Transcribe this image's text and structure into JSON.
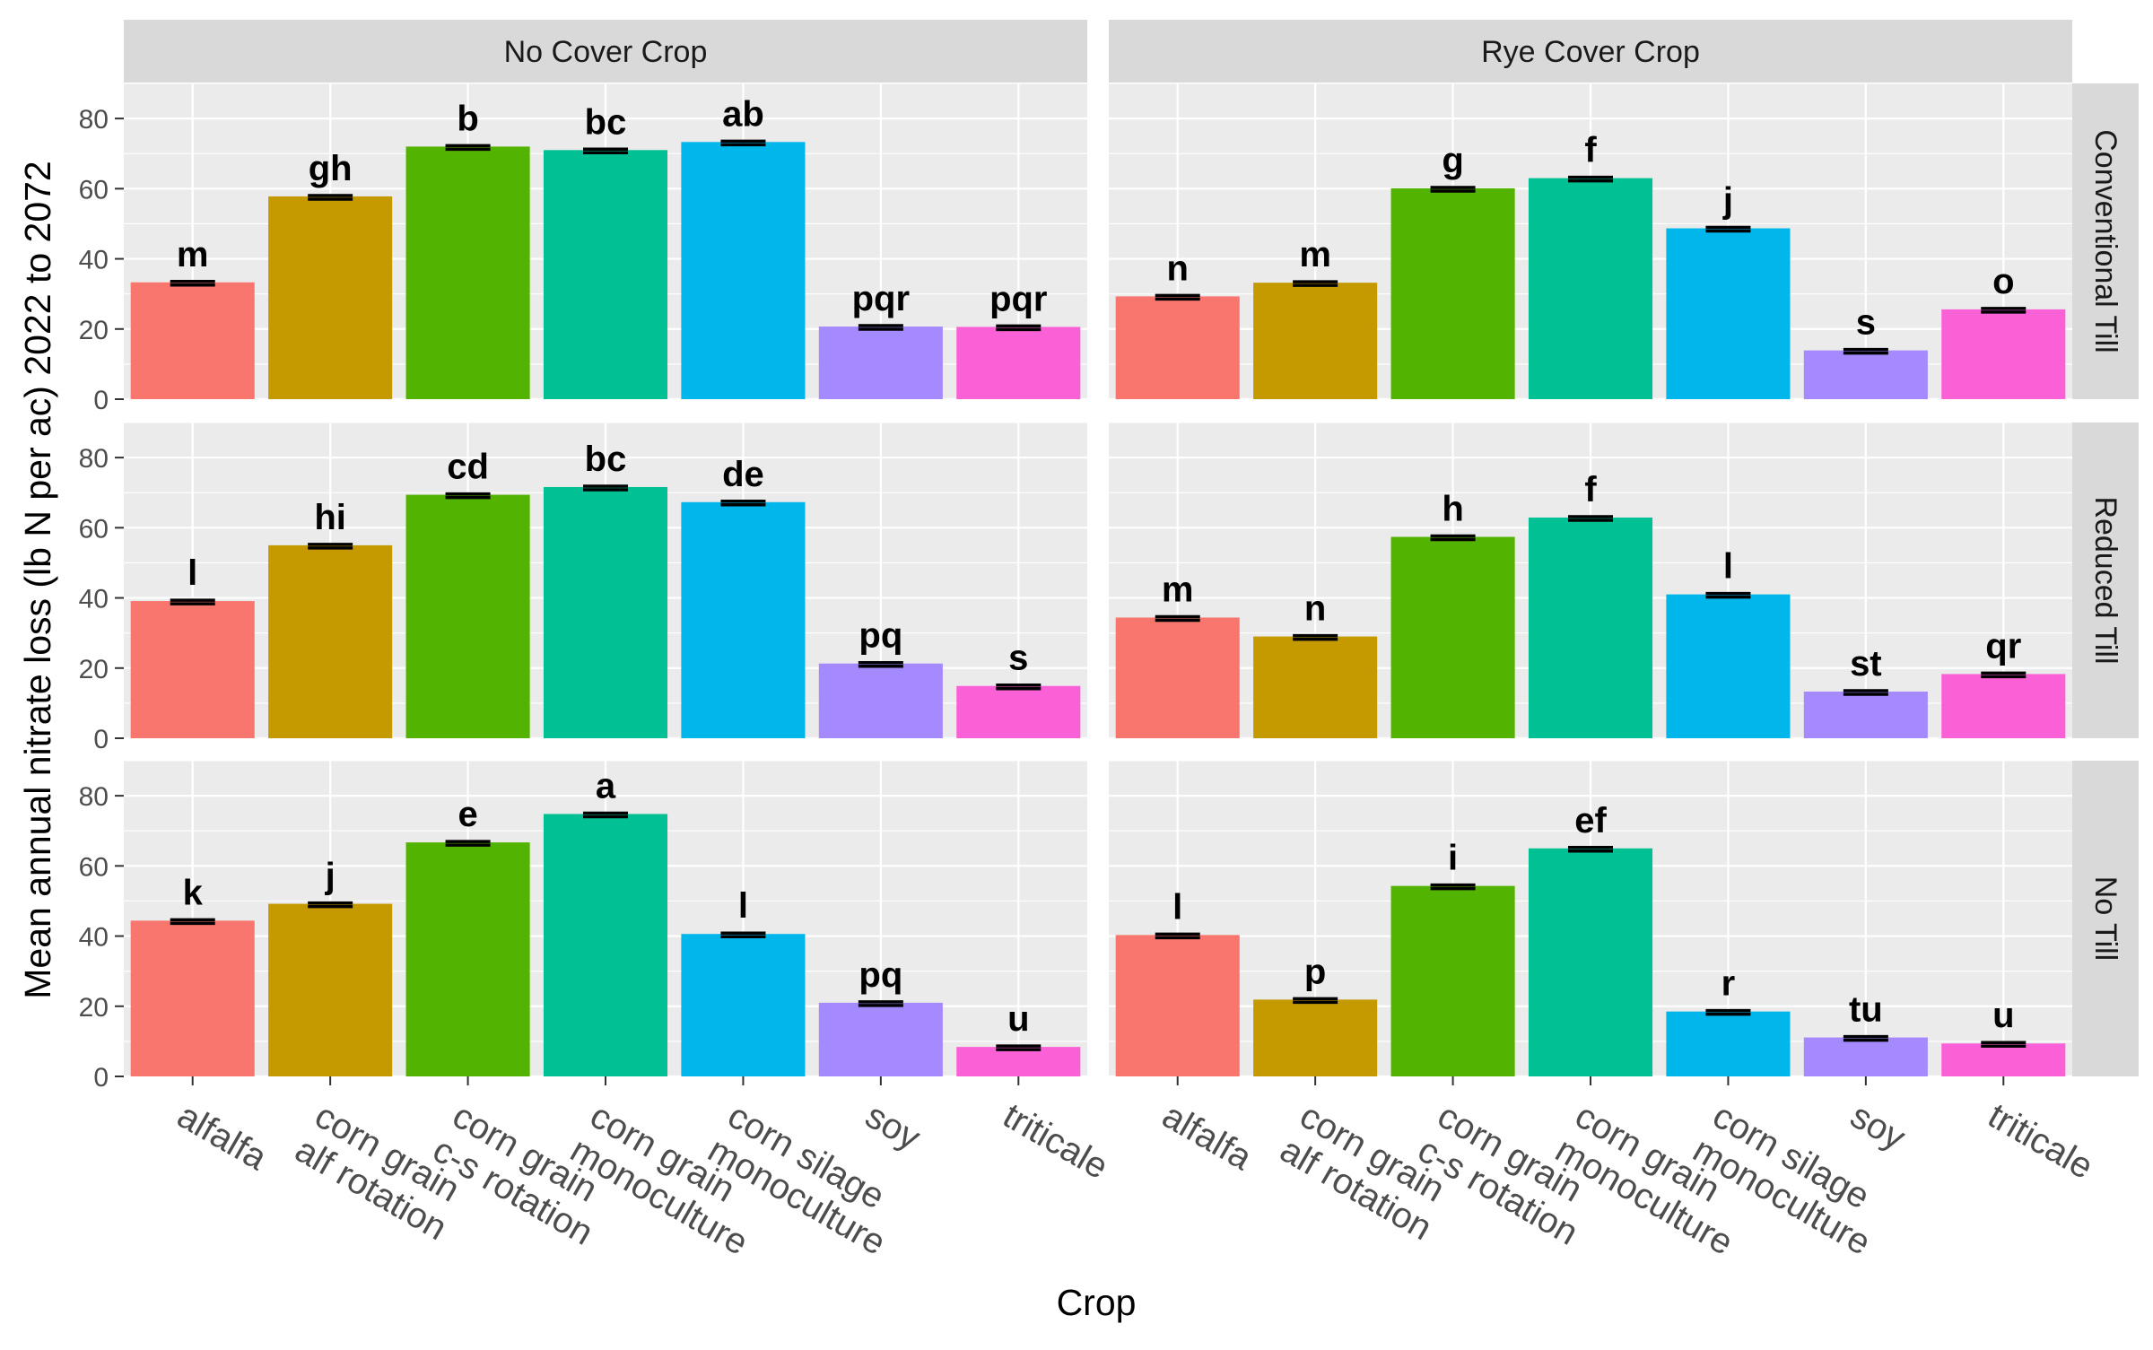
{
  "chart_data": {
    "type": "bar",
    "xlabel": "Crop",
    "ylabel": "Mean annual nitrate loss (lb N per ac) 2022 to 2072",
    "ylim": [
      0,
      90
    ],
    "yticks": [
      0,
      20,
      40,
      60,
      80
    ],
    "grid": true,
    "legend": "none",
    "categories": [
      [
        "alfalfa"
      ],
      [
        "corn grain",
        "alf rotation"
      ],
      [
        "corn grain",
        "c-s rotation"
      ],
      [
        "corn grain",
        "monoculture"
      ],
      [
        "corn silage",
        "monoculture"
      ],
      [
        "soy"
      ],
      [
        "triticale"
      ]
    ],
    "colors": [
      "#F8766D",
      "#C49A00",
      "#53B400",
      "#00C094",
      "#00B6EB",
      "#A58AFF",
      "#FB61D7"
    ],
    "columns": [
      "No Cover Crop",
      "Rye Cover Crop"
    ],
    "rows": [
      "Conventional Till",
      "Reduced Till",
      "No Till"
    ],
    "panels": [
      {
        "column": "No Cover Crop",
        "row": "Conventional Till",
        "values": [
          33.3,
          57.8,
          72.0,
          71.0,
          73.3,
          20.7,
          20.6
        ],
        "labels": [
          "m",
          "gh",
          "b",
          "bc",
          "ab",
          "pqr",
          "pqr"
        ]
      },
      {
        "column": "Rye Cover Crop",
        "row": "Conventional Till",
        "values": [
          29.3,
          33.2,
          60.1,
          63.0,
          48.7,
          13.9,
          25.6
        ],
        "labels": [
          "n",
          "m",
          "g",
          "f",
          "j",
          "s",
          "o"
        ]
      },
      {
        "column": "No Cover Crop",
        "row": "Reduced Till",
        "values": [
          39.1,
          55.0,
          69.4,
          71.6,
          67.3,
          21.3,
          14.9
        ],
        "labels": [
          "l",
          "hi",
          "cd",
          "bc",
          "de",
          "pq",
          "s"
        ]
      },
      {
        "column": "Rye Cover Crop",
        "row": "Reduced Till",
        "values": [
          34.4,
          29.0,
          57.4,
          62.9,
          41.0,
          13.3,
          18.3
        ],
        "labels": [
          "m",
          "n",
          "h",
          "f",
          "l",
          "st",
          "qr"
        ]
      },
      {
        "column": "No Cover Crop",
        "row": "No Till",
        "values": [
          44.4,
          49.2,
          66.7,
          74.8,
          40.6,
          21.0,
          8.4
        ],
        "labels": [
          "k",
          "j",
          "e",
          "a",
          "l",
          "pq",
          "u"
        ]
      },
      {
        "column": "Rye Cover Crop",
        "row": "No Till",
        "values": [
          40.3,
          21.9,
          54.3,
          65.0,
          18.5,
          11.1,
          9.4
        ],
        "labels": [
          "l",
          "p",
          "i",
          "ef",
          "r",
          "tu",
          "u"
        ]
      }
    ]
  }
}
